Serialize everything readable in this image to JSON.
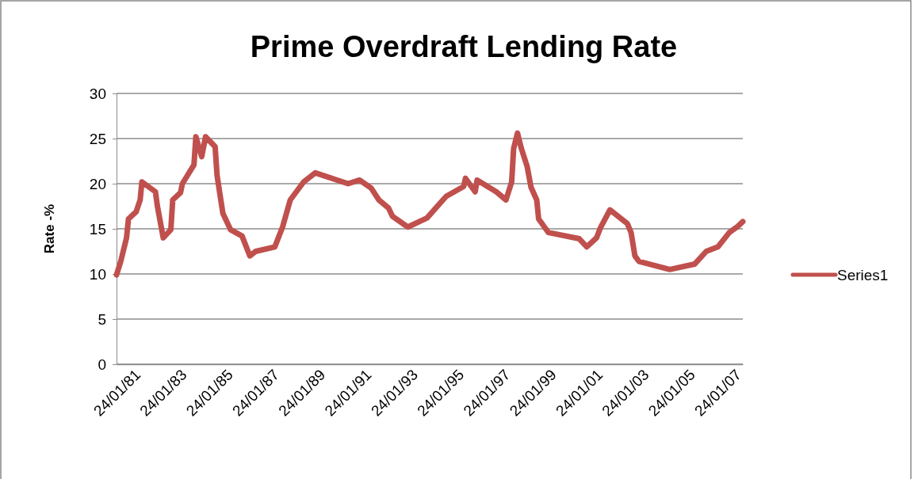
{
  "chart_data": {
    "type": "line",
    "title": "Prime Overdraft Lending Rate",
    "ylabel": "Rate -%",
    "x": [
      "1981-01-24",
      "1981-04",
      "1981-07",
      "1981-08",
      "1981-12",
      "1982-02",
      "1982-03",
      "1982-10",
      "1982-11",
      "1983-02",
      "1983-06",
      "1983-07",
      "1983-11",
      "1983-12",
      "1984-06",
      "1984-07",
      "1984-10",
      "1984-12",
      "1985-05",
      "1985-06",
      "1985-09",
      "1986-01",
      "1986-07",
      "1986-11",
      "1987-02",
      "1987-12",
      "1988-04",
      "1988-08",
      "1989-03",
      "1989-09",
      "1991-02",
      "1991-08",
      "1992-02",
      "1992-06",
      "1992-11",
      "1993-01",
      "1993-09",
      "1994-07",
      "1995-05",
      "1996-02",
      "1996-03",
      "1996-08",
      "1996-09",
      "1997-07",
      "1997-12",
      "1998-03",
      "1998-04",
      "1998-06",
      "1998-08",
      "1998-11",
      "1999-01",
      "1999-04",
      "1999-05",
      "1999-10",
      "2001-02",
      "2001-06",
      "2001-11",
      "2002-01",
      "2002-06",
      "2003-03",
      "2003-05",
      "2003-07",
      "2003-09",
      "2005-01",
      "2006-02",
      "2006-08",
      "2007-02",
      "2007-08",
      "2007-12",
      "2008-03"
    ],
    "series": [
      {
        "name": "Series1",
        "color": "#c0504d",
        "values": [
          9.9,
          11.4,
          14,
          16.1,
          16.9,
          18.2,
          20.2,
          19.1,
          17.5,
          14,
          14.9,
          18.2,
          19,
          20,
          22.1,
          25.2,
          23,
          25.2,
          24.1,
          20.9,
          16.7,
          14.9,
          14.2,
          12,
          12.5,
          13,
          15.2,
          18.2,
          20.2,
          21.2,
          20,
          20.4,
          19.5,
          18.2,
          17.3,
          16.4,
          15.2,
          16.2,
          18.6,
          19.7,
          20.6,
          19.1,
          20.4,
          19.1,
          18.2,
          20.2,
          23.9,
          25.6,
          23.9,
          21.9,
          19.6,
          18.2,
          16.1,
          14.6,
          13.9,
          13,
          14,
          15.1,
          17.1,
          15.6,
          14.6,
          12,
          11.4,
          10.5,
          11.1,
          12.5,
          13,
          14.6,
          15.2,
          15.8
        ]
      }
    ],
    "xlim": [
      "1981-01-24",
      "2008-03"
    ],
    "xticks": [
      {
        "value": "1981-01-24",
        "label": "24/01/81"
      },
      {
        "value": "1983-01-24",
        "label": "24/01/83"
      },
      {
        "value": "1985-01-24",
        "label": "24/01/85"
      },
      {
        "value": "1987-01-24",
        "label": "24/01/87"
      },
      {
        "value": "1989-01-24",
        "label": "24/01/89"
      },
      {
        "value": "1991-01-24",
        "label": "24/01/91"
      },
      {
        "value": "1993-01-24",
        "label": "24/01/93"
      },
      {
        "value": "1995-01-24",
        "label": "24/01/95"
      },
      {
        "value": "1997-01-24",
        "label": "24/01/97"
      },
      {
        "value": "1999-01-24",
        "label": "24/01/99"
      },
      {
        "value": "2001-01-24",
        "label": "24/01/01"
      },
      {
        "value": "2003-01-24",
        "label": "24/01/03"
      },
      {
        "value": "2005-01-24",
        "label": "24/01/05"
      },
      {
        "value": "2007-01-24",
        "label": "24/01/07"
      }
    ],
    "ylim": [
      0,
      30
    ],
    "yticks": [
      0,
      5,
      10,
      15,
      20,
      25,
      30
    ],
    "grid": "y",
    "legend": "right",
    "marker": "none",
    "line_style": "solid"
  }
}
